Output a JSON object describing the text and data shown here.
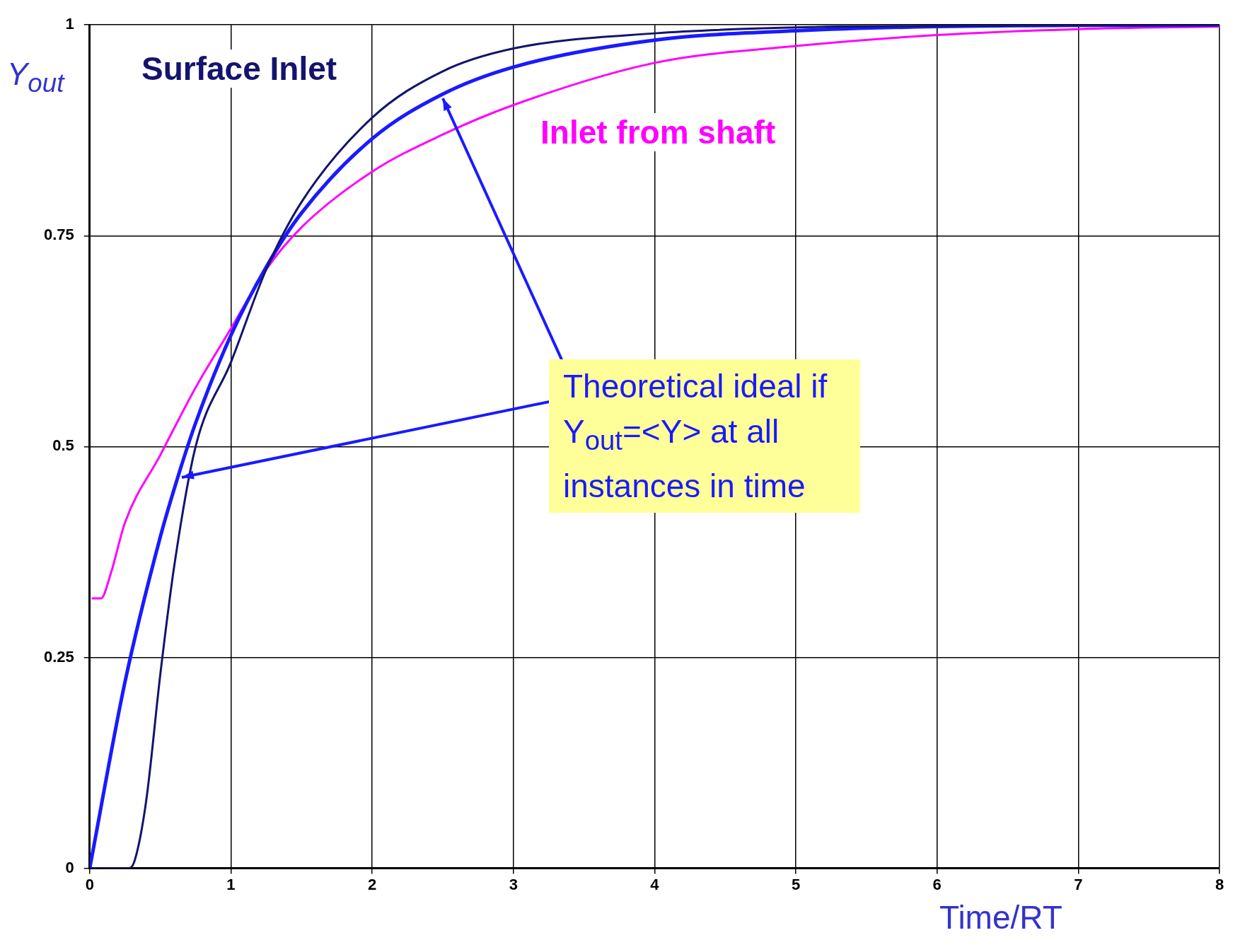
{
  "chart_data": {
    "type": "line",
    "xlabel": "Time/RT",
    "ylabel": "Y$_{out}$",
    "xlim": [
      0,
      8
    ],
    "xticks": [
      0,
      1,
      2,
      3,
      4,
      5,
      6,
      7,
      8
    ],
    "ylim": [
      0,
      1
    ],
    "yticks": [
      0,
      0.25,
      0.5,
      0.75,
      1
    ],
    "grid": true,
    "legend": false,
    "marker": "none",
    "line_style": "solid",
    "series": [
      {
        "name": "Surface Inlet",
        "color": "#14146e",
        "x": [
          0,
          0.28,
          0.32,
          0.4,
          0.5,
          0.6,
          0.75,
          1,
          1.25,
          1.5,
          2,
          2.5,
          3,
          4,
          5,
          6,
          8
        ],
        "values": [
          0,
          0,
          0.01,
          0.08,
          0.23,
          0.36,
          0.5,
          0.6,
          0.71,
          0.79,
          0.89,
          0.945,
          0.972,
          0.99,
          0.997,
          0.999,
          1
        ]
      },
      {
        "name": "Theoretical ideal if Y$_{out}$=<Y> at all instances in time",
        "color": "#1a1aff",
        "x": [
          0,
          0.25,
          0.5,
          0.63,
          0.75,
          1,
          1.25,
          1.5,
          2,
          2.5,
          3,
          4,
          5,
          6,
          8
        ],
        "values": [
          0,
          0.221,
          0.393,
          0.467,
          0.528,
          0.632,
          0.713,
          0.777,
          0.865,
          0.918,
          0.95,
          0.982,
          0.993,
          0.998,
          1
        ]
      },
      {
        "name": "Inlet from shaft",
        "color": "#ff00ff",
        "x": [
          0.02,
          0.08,
          0.15,
          0.25,
          0.5,
          0.75,
          1,
          1.25,
          1.5,
          2,
          2.5,
          3,
          4,
          5,
          6,
          7,
          8
        ],
        "values": [
          0.32,
          0.32,
          0.35,
          0.41,
          0.49,
          0.57,
          0.64,
          0.71,
          0.76,
          0.826,
          0.87,
          0.905,
          0.955,
          0.975,
          0.988,
          0.995,
          0.998
        ]
      }
    ]
  }
}
